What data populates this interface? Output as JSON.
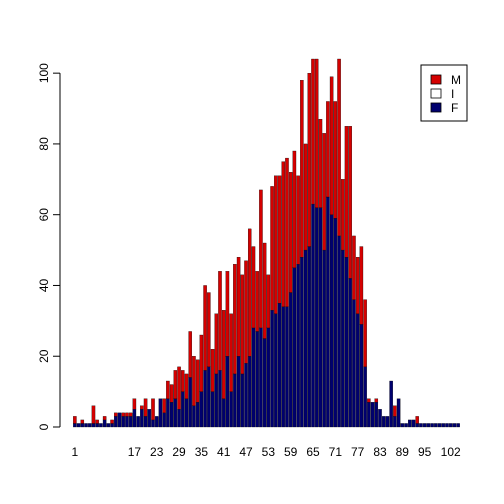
{
  "chart_data": {
    "type": "bar",
    "stacked": true,
    "categories": [
      1,
      2,
      3,
      4,
      5,
      6,
      7,
      8,
      9,
      10,
      11,
      12,
      13,
      14,
      15,
      16,
      17,
      18,
      19,
      20,
      21,
      22,
      23,
      24,
      25,
      26,
      27,
      28,
      29,
      30,
      31,
      32,
      33,
      34,
      35,
      36,
      37,
      38,
      39,
      40,
      41,
      42,
      43,
      44,
      45,
      46,
      47,
      48,
      49,
      50,
      51,
      52,
      53,
      54,
      55,
      56,
      57,
      58,
      59,
      60,
      61,
      62,
      63,
      64,
      65,
      66,
      67,
      68,
      69,
      70,
      71,
      72,
      73,
      74,
      75,
      76,
      77,
      78,
      79,
      80,
      81,
      82,
      83,
      84,
      85,
      86,
      87,
      88,
      89,
      90,
      91,
      92,
      93,
      94,
      95,
      96,
      97,
      98,
      99,
      100,
      101,
      102,
      103,
      104
    ],
    "x_tick_labels": [
      "1",
      "17",
      "23",
      "29",
      "35",
      "41",
      "47",
      "53",
      "59",
      "65",
      "71",
      "77",
      "83",
      "89",
      "95",
      "102"
    ],
    "x_tick_values": [
      1,
      17,
      23,
      29,
      35,
      41,
      47,
      53,
      59,
      65,
      71,
      77,
      83,
      89,
      95,
      102
    ],
    "y_ticks": [
      0,
      20,
      40,
      60,
      80,
      100
    ],
    "ylim": [
      0,
      104
    ],
    "series": [
      {
        "name": "F",
        "color": "#00006e",
        "values": [
          1,
          1,
          1,
          1,
          1,
          1,
          1,
          1,
          2,
          1,
          1,
          3,
          4,
          3,
          3,
          3,
          5,
          3,
          5,
          3,
          5,
          2,
          3,
          8,
          4,
          8,
          7,
          8,
          5,
          10,
          8,
          14,
          6,
          7,
          10,
          16,
          17,
          10,
          15,
          16,
          8,
          20,
          10,
          15,
          20,
          15,
          18,
          20,
          28,
          27,
          28,
          25,
          28,
          33,
          32,
          35,
          34,
          34,
          38,
          45,
          46,
          48,
          50,
          51,
          63,
          62,
          62,
          50,
          65,
          60,
          59,
          54,
          50,
          48,
          42,
          36,
          32,
          29,
          17,
          7,
          7,
          7,
          5,
          3,
          3,
          13,
          3,
          8,
          1,
          1,
          2,
          2,
          1,
          1,
          1,
          1,
          1,
          1,
          1,
          1,
          1,
          1,
          1,
          1
        ]
      },
      {
        "name": "I",
        "color": "#ffffff",
        "values": [
          0,
          0,
          0,
          0,
          0,
          0,
          0,
          0,
          0,
          0,
          0,
          0,
          0,
          0,
          0,
          0,
          0,
          0,
          0,
          0,
          0,
          0,
          0,
          0,
          0,
          0,
          0,
          0,
          0,
          0,
          0,
          0,
          0,
          0,
          0,
          0,
          0,
          0,
          0,
          0,
          0,
          0,
          0,
          0,
          0,
          0,
          0,
          0,
          0,
          0,
          0,
          0,
          0,
          0,
          0,
          0,
          0,
          0,
          0,
          0,
          0,
          0,
          0,
          0,
          0,
          0,
          0,
          0,
          0,
          0,
          0,
          0,
          0,
          0,
          0,
          0,
          0,
          0,
          0,
          0,
          0,
          0,
          0,
          0,
          0,
          0,
          0,
          0,
          0,
          0,
          0,
          0,
          0,
          0,
          0,
          0,
          0,
          0,
          0,
          0,
          0,
          0,
          0,
          0
        ]
      },
      {
        "name": "M",
        "color": "#d40000",
        "values": [
          2,
          0,
          1,
          0,
          0,
          5,
          1,
          0,
          1,
          0,
          1,
          1,
          0,
          1,
          1,
          1,
          3,
          0,
          1,
          5,
          0,
          6,
          0,
          0,
          4,
          5,
          5,
          8,
          12,
          6,
          7,
          13,
          14,
          12,
          16,
          24,
          21,
          12,
          17,
          28,
          25,
          24,
          22,
          31,
          28,
          28,
          29,
          36,
          23,
          17,
          39,
          27,
          15,
          35,
          39,
          36,
          41,
          42,
          34,
          33,
          25,
          50,
          30,
          49,
          41,
          42,
          25,
          33,
          27,
          39,
          33,
          50,
          20,
          37,
          43,
          18,
          16,
          22,
          19,
          1,
          0,
          1,
          0,
          0,
          0,
          0,
          3,
          0,
          0,
          0,
          0,
          0,
          2,
          0,
          0,
          0,
          0,
          0,
          0,
          0,
          0,
          0,
          0,
          0
        ]
      }
    ],
    "legend": {
      "position": "top-right",
      "entries": [
        "M",
        "I",
        "F"
      ]
    },
    "grid": false
  }
}
